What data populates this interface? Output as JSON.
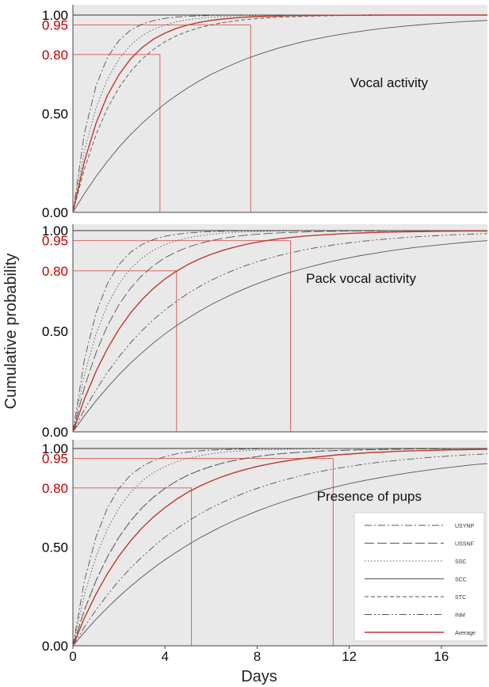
{
  "ylabel": "Cumulative probability",
  "xlabel": "Days",
  "x_ticks": [
    0,
    4,
    8,
    12,
    16
  ],
  "y_ticks": [
    {
      "value": 0.0,
      "label": "0.00",
      "color": "#000000"
    },
    {
      "value": 0.5,
      "label": "0.50",
      "color": "#000000"
    },
    {
      "value": 0.8,
      "label": "0.80",
      "color": "#c00000"
    },
    {
      "value": 0.95,
      "label": "0.95",
      "color": "#c00000"
    },
    {
      "value": 1.0,
      "label": "1.00",
      "color": "#000000"
    }
  ],
  "colors": {
    "panel_bg": "#e9e9e9",
    "curve": "#555555",
    "average": "#c0392b",
    "reference": "#d9534f",
    "label_red": "#c00000"
  },
  "chart_data": [
    {
      "type": "line",
      "title": "Vocal activity",
      "xlim": [
        0,
        18
      ],
      "ylim": [
        0,
        1
      ],
      "grid": false,
      "x": [
        0,
        0.5,
        1,
        1.5,
        2,
        2.5,
        3,
        3.5,
        4,
        4.5,
        5,
        5.5,
        6,
        6.5,
        7,
        7.5,
        8,
        8.5,
        9,
        9.5,
        10,
        10.5,
        11,
        11.5,
        12,
        12.5,
        13,
        13.5,
        14,
        14.5,
        15,
        15.5,
        16,
        16.5,
        17,
        17.5,
        18
      ],
      "reference_lines": [
        {
          "y": 0.8,
          "x": 3.78
        },
        {
          "y": 0.95,
          "x": 7.72
        }
      ],
      "series": [
        {
          "name": "USYNP",
          "dash": "dashdot",
          "color": "#555555",
          "values": [
            0,
            0.401,
            0.641,
            0.785,
            0.871,
            0.923,
            0.954,
            0.972,
            0.983,
            0.99,
            0.994,
            0.996,
            0.998,
            0.999,
            0.999,
            1,
            1,
            1,
            1,
            1,
            1,
            1,
            1,
            1,
            1,
            1,
            1,
            1,
            1,
            1,
            1,
            1,
            1,
            1,
            1,
            1,
            1
          ]
        },
        {
          "name": "USSNF",
          "dash": "longdash",
          "color": "#555555",
          "values": [
            0,
            0.259,
            0.451,
            0.593,
            0.698,
            0.777,
            0.835,
            0.878,
            0.909,
            0.933,
            0.95,
            0.963,
            0.973,
            0.98,
            0.985,
            0.989,
            0.992,
            0.994,
            0.995,
            0.997,
            0.998,
            0.998,
            0.999,
            0.999,
            0.999,
            0.999,
            1,
            1,
            1,
            1,
            1,
            1,
            1,
            1,
            1,
            1,
            1
          ]
        },
        {
          "name": "SSC",
          "dash": "dotted",
          "color": "#555555",
          "values": [
            0,
            0.313,
            0.528,
            0.675,
            0.777,
            0.847,
            0.895,
            0.928,
            0.95,
            0.966,
            0.977,
            0.984,
            0.989,
            0.992,
            0.995,
            0.996,
            0.997,
            0.998,
            0.999,
            0.999,
            0.999,
            1,
            1,
            1,
            1,
            1,
            1,
            1,
            1,
            1,
            1,
            1,
            1,
            1,
            1,
            1,
            1
          ]
        },
        {
          "name": "SCC",
          "dash": "solid",
          "color": "#555555",
          "values": [
            0,
            0.095,
            0.181,
            0.259,
            0.33,
            0.393,
            0.451,
            0.503,
            0.551,
            0.593,
            0.632,
            0.667,
            0.699,
            0.727,
            0.753,
            0.777,
            0.798,
            0.817,
            0.835,
            0.85,
            0.865,
            0.878,
            0.889,
            0.9,
            0.909,
            0.918,
            0.926,
            0.933,
            0.939,
            0.945,
            0.95,
            0.955,
            0.959,
            0.963,
            0.967,
            0.97,
            0.973
          ]
        },
        {
          "name": "STC",
          "dash": "dashed",
          "color": "#555555",
          "values": [
            0,
            0.221,
            0.393,
            0.528,
            0.632,
            0.713,
            0.777,
            0.826,
            0.865,
            0.895,
            0.918,
            0.936,
            0.95,
            0.961,
            0.97,
            0.977,
            0.982,
            0.986,
            0.989,
            0.991,
            0.993,
            0.995,
            0.996,
            0.997,
            0.998,
            0.998,
            0.998,
            0.999,
            0.999,
            0.999,
            0.999,
            1,
            1,
            1,
            1,
            1,
            1
          ]
        },
        {
          "name": "Average",
          "dash": "solid",
          "color": "#c0392b",
          "values": [
            0,
            0.259,
            0.451,
            0.593,
            0.698,
            0.777,
            0.835,
            0.878,
            0.909,
            0.933,
            0.95,
            0.963,
            0.973,
            0.98,
            0.985,
            0.989,
            0.992,
            0.994,
            0.995,
            0.997,
            0.998,
            0.998,
            0.999,
            0.999,
            0.999,
            0.999,
            1,
            1,
            1,
            1,
            1,
            1,
            1,
            1,
            1,
            1,
            1
          ]
        }
      ]
    },
    {
      "type": "line",
      "title": "Pack vocal activity",
      "xlim": [
        0,
        18
      ],
      "ylim": [
        0,
        1
      ],
      "grid": false,
      "x": [
        0,
        0.5,
        1,
        1.5,
        2,
        2.5,
        3,
        3.5,
        4,
        4.5,
        5,
        5.5,
        6,
        6.5,
        7,
        7.5,
        8,
        8.5,
        9,
        9.5,
        10,
        10.5,
        11,
        11.5,
        12,
        12.5,
        13,
        13.5,
        14,
        14.5,
        15,
        15.5,
        16,
        16.5,
        17,
        17.5,
        18
      ],
      "reference_lines": [
        {
          "y": 0.8,
          "x": 4.5
        },
        {
          "y": 0.95,
          "x": 9.45
        }
      ],
      "series": [
        {
          "name": "USYNP",
          "dash": "dashdot",
          "color": "#555555",
          "values": [
            0,
            0.359,
            0.589,
            0.737,
            0.831,
            0.892,
            0.931,
            0.956,
            0.972,
            0.982,
            0.988,
            0.992,
            0.995,
            0.997,
            0.998,
            0.999,
            0.999,
            0.999,
            1,
            1,
            1,
            1,
            1,
            1,
            1,
            1,
            1,
            1,
            1,
            1,
            1,
            1,
            1,
            1,
            1,
            1,
            1
          ]
        },
        {
          "name": "USSNF",
          "dash": "longdash",
          "color": "#555555",
          "values": [
            0,
            0.221,
            0.393,
            0.528,
            0.632,
            0.713,
            0.777,
            0.826,
            0.865,
            0.895,
            0.918,
            0.936,
            0.95,
            0.961,
            0.97,
            0.977,
            0.982,
            0.986,
            0.989,
            0.991,
            0.993,
            0.995,
            0.996,
            0.997,
            0.998,
            0.998,
            0.998,
            0.999,
            0.999,
            0.999,
            0.999,
            1,
            1,
            1,
            1,
            1,
            1
          ]
        },
        {
          "name": "SSC",
          "dash": "dotted",
          "color": "#555555",
          "values": [
            0,
            0.283,
            0.486,
            0.632,
            0.736,
            0.811,
            0.864,
            0.903,
            0.93,
            0.95,
            0.964,
            0.974,
            0.982,
            0.987,
            0.991,
            0.993,
            0.995,
            0.997,
            0.998,
            0.998,
            0.999,
            0.999,
            0.999,
            1,
            1,
            1,
            1,
            1,
            1,
            1,
            1,
            1,
            1,
            1,
            1,
            1,
            1
          ]
        },
        {
          "name": "SCC",
          "dash": "solid",
          "color": "#555555",
          "values": [
            0,
            0.08,
            0.154,
            0.221,
            0.284,
            0.341,
            0.393,
            0.442,
            0.487,
            0.528,
            0.565,
            0.6,
            0.632,
            0.661,
            0.688,
            0.713,
            0.736,
            0.757,
            0.777,
            0.795,
            0.811,
            0.826,
            0.84,
            0.853,
            0.865,
            0.876,
            0.885,
            0.895,
            0.903,
            0.911,
            0.918,
            0.924,
            0.93,
            0.936,
            0.941,
            0.946,
            0.95
          ]
        },
        {
          "name": "INM",
          "dash": "dashdotdot",
          "color": "#555555",
          "values": [
            0,
            0.11,
            0.208,
            0.295,
            0.373,
            0.442,
            0.503,
            0.558,
            0.606,
            0.649,
            0.688,
            0.722,
            0.753,
            0.78,
            0.804,
            0.826,
            0.845,
            0.862,
            0.877,
            0.891,
            0.903,
            0.914,
            0.923,
            0.932,
            0.939,
            0.946,
            0.952,
            0.957,
            0.962,
            0.966,
            0.97,
            0.973,
            0.976,
            0.979,
            0.981,
            0.983,
            0.985
          ]
        },
        {
          "name": "Average",
          "dash": "solid",
          "color": "#c0392b",
          "values": [
            0,
            0.163,
            0.3,
            0.414,
            0.51,
            0.59,
            0.657,
            0.713,
            0.76,
            0.799,
            0.832,
            0.859,
            0.882,
            0.901,
            0.917,
            0.931,
            0.942,
            0.952,
            0.96,
            0.966,
            0.972,
            0.976,
            0.98,
            0.983,
            0.986,
            0.988,
            0.99,
            0.992,
            0.993,
            0.994,
            0.995,
            0.996,
            0.997,
            0.997,
            0.998,
            0.998,
            0.998
          ]
        }
      ]
    },
    {
      "type": "line",
      "title": "Presence of pups",
      "xlim": [
        0,
        18
      ],
      "ylim": [
        0,
        1
      ],
      "grid": false,
      "legend_position": "lower-right",
      "x": [
        0,
        0.5,
        1,
        1.5,
        2,
        2.5,
        3,
        3.5,
        4,
        4.5,
        5,
        5.5,
        6,
        6.5,
        7,
        7.5,
        8,
        8.5,
        9,
        9.5,
        10,
        10.5,
        11,
        11.5,
        12,
        12.5,
        13,
        13.5,
        14,
        14.5,
        15,
        15.5,
        16,
        16.5,
        17,
        17.5,
        18
      ],
      "reference_lines": [
        {
          "y": 0.8,
          "x": 5.15
        },
        {
          "y": 0.95,
          "x": 11.3
        }
      ],
      "series": [
        {
          "name": "USYNP",
          "dash": "dashdot",
          "color": "#555555",
          "values": [
            0,
            0.33,
            0.551,
            0.699,
            0.798,
            0.865,
            0.909,
            0.939,
            0.959,
            0.973,
            0.982,
            0.988,
            0.992,
            0.994,
            0.996,
            0.997,
            0.998,
            0.999,
            0.999,
            0.999,
            1,
            1,
            1,
            1,
            1,
            1,
            1,
            1,
            1,
            1,
            1,
            1,
            1,
            1,
            1,
            1,
            1
          ]
        },
        {
          "name": "USSNF",
          "dash": "longdash",
          "color": "#555555",
          "values": [
            0,
            0.181,
            0.33,
            0.451,
            0.551,
            0.632,
            0.699,
            0.753,
            0.798,
            0.835,
            0.865,
            0.889,
            0.909,
            0.926,
            0.939,
            0.95,
            0.959,
            0.967,
            0.973,
            0.978,
            0.982,
            0.985,
            0.988,
            0.99,
            0.992,
            0.993,
            0.994,
            0.995,
            0.996,
            0.997,
            0.998,
            0.998,
            0.998,
            0.999,
            0.999,
            0.999,
            0.999
          ]
        },
        {
          "name": "SSC",
          "dash": "dotted",
          "color": "#555555",
          "values": [
            0,
            0.259,
            0.451,
            0.593,
            0.698,
            0.777,
            0.835,
            0.878,
            0.909,
            0.933,
            0.95,
            0.963,
            0.973,
            0.98,
            0.985,
            0.989,
            0.992,
            0.994,
            0.995,
            0.997,
            0.998,
            0.998,
            0.999,
            0.999,
            0.999,
            0.999,
            1,
            1,
            1,
            1,
            1,
            1,
            1,
            1,
            1,
            1,
            1
          ]
        },
        {
          "name": "SCC",
          "dash": "solid",
          "color": "#555555",
          "values": [
            0,
            0.069,
            0.134,
            0.193,
            0.249,
            0.301,
            0.349,
            0.394,
            0.436,
            0.475,
            0.512,
            0.546,
            0.577,
            0.607,
            0.634,
            0.659,
            0.683,
            0.705,
            0.725,
            0.744,
            0.762,
            0.779,
            0.794,
            0.808,
            0.822,
            0.834,
            0.845,
            0.856,
            0.866,
            0.875,
            0.884,
            0.892,
            0.899,
            0.906,
            0.913,
            0.919,
            0.924
          ]
        },
        {
          "name": "STC",
          "dash": "dashed",
          "color": "#555555",
          "values": [
            0,
            0.181,
            0.33,
            0.451,
            0.551,
            0.632,
            0.699,
            0.753,
            0.798,
            0.835,
            0.865,
            0.889,
            0.909,
            0.926,
            0.939,
            0.95,
            0.959,
            0.967,
            0.973,
            0.978,
            0.982,
            0.985,
            0.988,
            0.99,
            0.992,
            0.993,
            0.994,
            0.995,
            0.996,
            0.997,
            0.998,
            0.998,
            0.998,
            0.999,
            0.999,
            0.999,
            0.999
          ]
        },
        {
          "name": "INM",
          "dash": "dashdotdot",
          "color": "#555555",
          "values": [
            0,
            0.095,
            0.181,
            0.259,
            0.33,
            0.393,
            0.451,
            0.503,
            0.551,
            0.593,
            0.632,
            0.667,
            0.699,
            0.727,
            0.753,
            0.777,
            0.798,
            0.817,
            0.835,
            0.85,
            0.865,
            0.878,
            0.889,
            0.9,
            0.909,
            0.918,
            0.926,
            0.933,
            0.939,
            0.945,
            0.95,
            0.955,
            0.959,
            0.963,
            0.967,
            0.97,
            0.973
          ]
        },
        {
          "name": "Average",
          "dash": "solid",
          "color": "#c0392b",
          "values": [
            0,
            0.141,
            0.262,
            0.366,
            0.455,
            0.531,
            0.597,
            0.653,
            0.701,
            0.743,
            0.779,
            0.809,
            0.835,
            0.858,
            0.877,
            0.894,
            0.909,
            0.921,
            0.932,
            0.941,
            0.949,
            0.956,
            0.962,
            0.968,
            0.972,
            0.976,
            0.98,
            0.982,
            0.985,
            0.987,
            0.989,
            0.99,
            0.992,
            0.993,
            0.994,
            0.995,
            0.996
          ]
        }
      ]
    }
  ],
  "legend": [
    {
      "name": "USYNP",
      "dash": "dashdot"
    },
    {
      "name": "USSNF",
      "dash": "longdash"
    },
    {
      "name": "SSC",
      "dash": "dotted"
    },
    {
      "name": "SCC",
      "dash": "solid"
    },
    {
      "name": "STC",
      "dash": "dashed"
    },
    {
      "name": "INM",
      "dash": "dashdotdot"
    },
    {
      "name": "Average",
      "dash": "solid",
      "color": "#c0392b"
    }
  ]
}
